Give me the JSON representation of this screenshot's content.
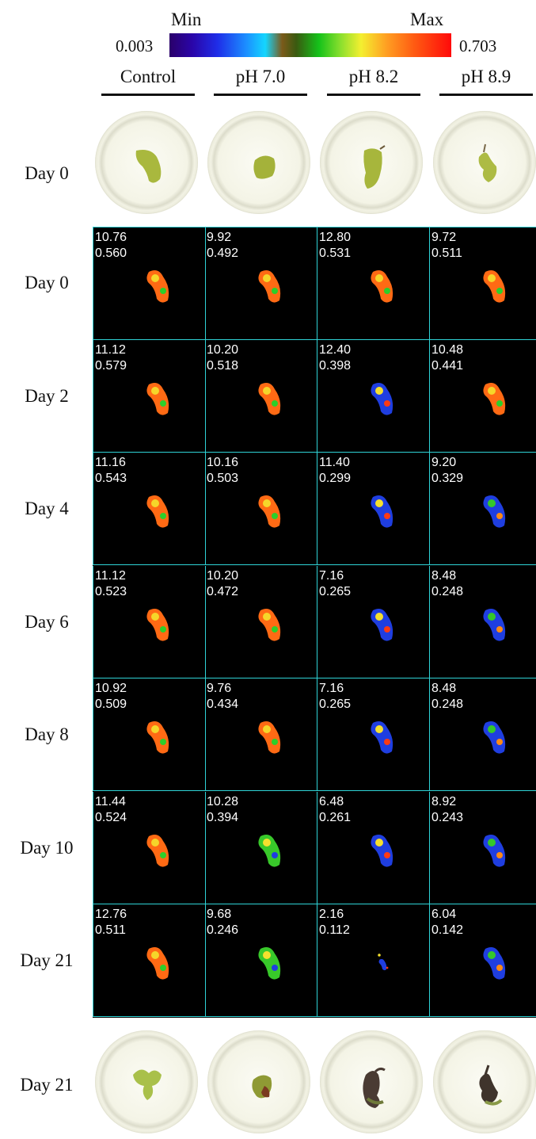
{
  "scale": {
    "min_label": "Min",
    "max_label": "Max",
    "min_value": "0.003",
    "max_value": "0.703"
  },
  "columns": [
    "Control",
    "pH 7.0",
    "pH 8.2",
    "pH 8.9"
  ],
  "top_photo_row": {
    "label": "Day 0"
  },
  "bottom_photo_row": {
    "label": "Day 21"
  },
  "rows": [
    {
      "label": "Day 0",
      "cells": [
        {
          "a": "10.76",
          "b": "0.560"
        },
        {
          "a": "9.92",
          "b": "0.492"
        },
        {
          "a": "12.80",
          "b": "0.531"
        },
        {
          "a": "9.72",
          "b": "0.511"
        }
      ]
    },
    {
      "label": "Day 2",
      "cells": [
        {
          "a": "11.12",
          "b": "0.579"
        },
        {
          "a": "10.20",
          "b": "0.518"
        },
        {
          "a": "12.40",
          "b": "0.398"
        },
        {
          "a": "10.48",
          "b": "0.441"
        }
      ]
    },
    {
      "label": "Day 4",
      "cells": [
        {
          "a": "11.16",
          "b": "0.543"
        },
        {
          "a": "10.16",
          "b": "0.503"
        },
        {
          "a": "11.40",
          "b": "0.299"
        },
        {
          "a": "9.20",
          "b": "0.329"
        }
      ]
    },
    {
      "label": "Day 6",
      "cells": [
        {
          "a": "11.12",
          "b": "0.523"
        },
        {
          "a": "10.20",
          "b": "0.472"
        },
        {
          "a": "7.16",
          "b": "0.265"
        },
        {
          "a": "8.48",
          "b": "0.248"
        }
      ]
    },
    {
      "label": "Day 8",
      "cells": [
        {
          "a": "10.92",
          "b": "0.509"
        },
        {
          "a": "9.76",
          "b": "0.434"
        },
        {
          "a": "7.16",
          "b": "0.265"
        },
        {
          "a": "8.48",
          "b": "0.248"
        }
      ]
    },
    {
      "label": "Day 10",
      "cells": [
        {
          "a": "11.44",
          "b": "0.524"
        },
        {
          "a": "10.28",
          "b": "0.394"
        },
        {
          "a": "6.48",
          "b": "0.261"
        },
        {
          "a": "8.92",
          "b": "0.243"
        }
      ]
    },
    {
      "label": "Day 21",
      "cells": [
        {
          "a": "12.76",
          "b": "0.511"
        },
        {
          "a": "9.68",
          "b": "0.246"
        },
        {
          "a": "2.16",
          "b": "0.112"
        },
        {
          "a": "6.04",
          "b": "0.142"
        }
      ]
    }
  ],
  "colors": {
    "grid_line": "#2fd3d6",
    "leaf_green": "#a9b83e",
    "leaf_dark": "#4a3b33"
  }
}
